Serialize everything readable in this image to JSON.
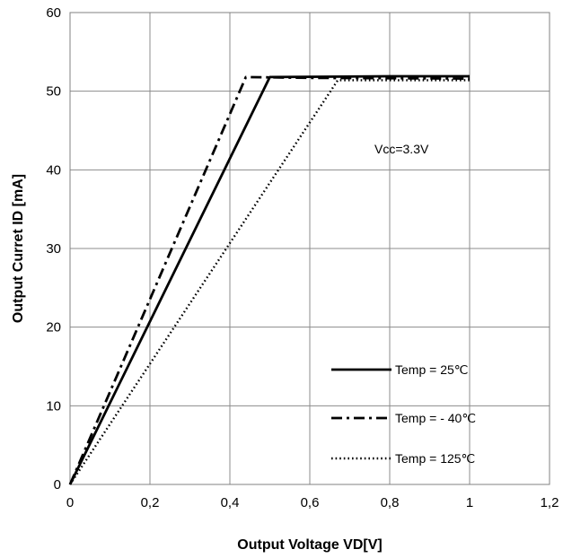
{
  "chart_data": {
    "type": "line",
    "xlabel": "Output Voltage  VD[V]",
    "ylabel": "Output Curret  ID [mA]",
    "xlim": [
      0,
      1.2
    ],
    "ylim": [
      0,
      60
    ],
    "x_ticks": [
      "0",
      "0,2",
      "0,4",
      "0,6",
      "0,8",
      "1",
      "1,2"
    ],
    "y_ticks": [
      "0",
      "10",
      "20",
      "30",
      "40",
      "50",
      "60"
    ],
    "grid": true,
    "legend_position": "bottom-right",
    "annotation": "Vcc=3.3V",
    "series": [
      {
        "name": "Temp = 25℃",
        "style": "solid",
        "x": [
          0,
          0.5,
          0.8,
          1.0
        ],
        "y": [
          0,
          51.8,
          51.9,
          51.9
        ]
      },
      {
        "name": "Temp = - 40℃",
        "style": "dashdot",
        "x": [
          0,
          0.44,
          0.6,
          1.0
        ],
        "y": [
          0,
          51.8,
          51.7,
          51.6
        ]
      },
      {
        "name": "Temp = 125℃",
        "style": "dotted",
        "x": [
          0,
          0.67,
          0.8,
          1.0
        ],
        "y": [
          0,
          51.4,
          51.4,
          51.4
        ]
      }
    ]
  }
}
